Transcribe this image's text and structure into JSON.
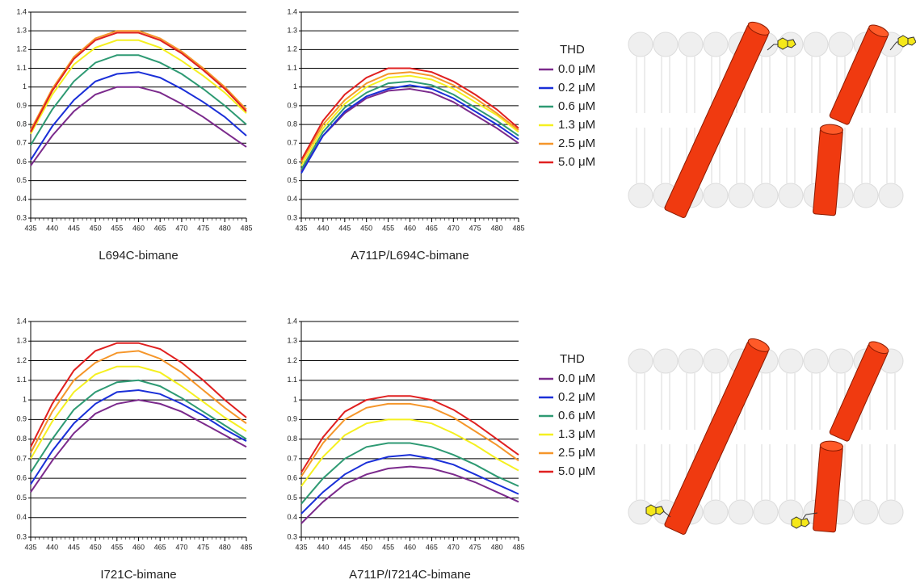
{
  "chart_data": [
    {
      "type": "line",
      "xlabel": "L694C-bimane",
      "x": [
        435,
        440,
        445,
        450,
        455,
        460,
        465,
        470,
        475,
        480,
        485
      ],
      "xlim": [
        435,
        485
      ],
      "xticks": [
        435,
        440,
        445,
        450,
        455,
        460,
        465,
        470,
        475,
        480,
        485
      ],
      "ylim": [
        0.3,
        1.4
      ],
      "yticks": [
        0.3,
        0.4,
        0.5,
        0.6,
        0.7,
        0.8,
        0.9,
        1,
        1.1,
        1.2,
        1.3,
        1.4
      ],
      "grid": true,
      "series": [
        {
          "color": "#7b2a8c",
          "values": [
            0.58,
            0.74,
            0.87,
            0.96,
            1.0,
            1.0,
            0.97,
            0.91,
            0.84,
            0.76,
            0.68
          ]
        },
        {
          "color": "#1a2fd8",
          "values": [
            0.61,
            0.79,
            0.93,
            1.03,
            1.07,
            1.08,
            1.05,
            0.99,
            0.92,
            0.84,
            0.74
          ]
        },
        {
          "color": "#2e9a73",
          "values": [
            0.69,
            0.88,
            1.03,
            1.13,
            1.17,
            1.17,
            1.13,
            1.07,
            0.99,
            0.9,
            0.8
          ]
        },
        {
          "color": "#f5f020",
          "values": [
            0.75,
            0.96,
            1.12,
            1.21,
            1.25,
            1.25,
            1.21,
            1.14,
            1.06,
            0.97,
            0.86
          ]
        },
        {
          "color": "#f5962a",
          "values": [
            0.77,
            0.99,
            1.16,
            1.26,
            1.3,
            1.3,
            1.26,
            1.19,
            1.1,
            1.0,
            0.88
          ]
        },
        {
          "color": "#e02020",
          "values": [
            0.76,
            0.98,
            1.15,
            1.25,
            1.29,
            1.29,
            1.25,
            1.18,
            1.09,
            0.99,
            0.87
          ]
        }
      ]
    },
    {
      "type": "line",
      "xlabel": "A711P/L694C-bimane",
      "x": [
        435,
        440,
        445,
        450,
        455,
        460,
        465,
        470,
        475,
        480,
        485
      ],
      "xlim": [
        435,
        485
      ],
      "xticks": [
        435,
        440,
        445,
        450,
        455,
        460,
        465,
        470,
        475,
        480,
        485
      ],
      "ylim": [
        0.3,
        1.4
      ],
      "yticks": [
        0.3,
        0.4,
        0.5,
        0.6,
        0.7,
        0.8,
        0.9,
        1,
        1.1,
        1.2,
        1.3,
        1.4
      ],
      "grid": true,
      "legend_title": "THD",
      "legend": "right",
      "series": [
        {
          "name": "0.0 μM",
          "color": "#7b2a8c",
          "values": [
            0.55,
            0.74,
            0.86,
            0.94,
            0.98,
            0.99,
            0.97,
            0.92,
            0.85,
            0.78,
            0.7
          ]
        },
        {
          "name": "0.2 μM",
          "color": "#1a2fd8",
          "values": [
            0.54,
            0.74,
            0.87,
            0.95,
            0.99,
            1.01,
            0.99,
            0.94,
            0.87,
            0.8,
            0.72
          ]
        },
        {
          "name": "0.6 μM",
          "color": "#2e9a73",
          "values": [
            0.56,
            0.76,
            0.89,
            0.97,
            1.02,
            1.03,
            1.01,
            0.96,
            0.89,
            0.82,
            0.74
          ]
        },
        {
          "name": "1.3 μM",
          "color": "#f5f020",
          "values": [
            0.58,
            0.78,
            0.91,
            1.0,
            1.05,
            1.06,
            1.04,
            0.99,
            0.92,
            0.85,
            0.76
          ]
        },
        {
          "name": "2.5 μM",
          "color": "#f5962a",
          "values": [
            0.6,
            0.8,
            0.93,
            1.02,
            1.07,
            1.08,
            1.06,
            1.01,
            0.94,
            0.86,
            0.77
          ]
        },
        {
          "name": "5.0 μM",
          "color": "#e02020",
          "values": [
            0.61,
            0.82,
            0.96,
            1.05,
            1.1,
            1.1,
            1.08,
            1.03,
            0.96,
            0.88,
            0.78
          ]
        }
      ]
    },
    {
      "type": "line",
      "xlabel": "I721C-bimane",
      "x": [
        435,
        440,
        445,
        450,
        455,
        460,
        465,
        470,
        475,
        480,
        485
      ],
      "xlim": [
        435,
        485
      ],
      "xticks": [
        435,
        440,
        445,
        450,
        455,
        460,
        465,
        470,
        475,
        480,
        485
      ],
      "ylim": [
        0.3,
        1.4
      ],
      "yticks": [
        0.3,
        0.4,
        0.5,
        0.6,
        0.7,
        0.8,
        0.9,
        1,
        1.1,
        1.2,
        1.3,
        1.4
      ],
      "grid": true,
      "series": [
        {
          "color": "#7b2a8c",
          "values": [
            0.53,
            0.69,
            0.83,
            0.93,
            0.98,
            1.0,
            0.98,
            0.94,
            0.88,
            0.82,
            0.76
          ]
        },
        {
          "color": "#1a2fd8",
          "values": [
            0.57,
            0.74,
            0.88,
            0.98,
            1.04,
            1.05,
            1.03,
            0.98,
            0.92,
            0.85,
            0.79
          ]
        },
        {
          "color": "#2e9a73",
          "values": [
            0.63,
            0.8,
            0.95,
            1.04,
            1.09,
            1.1,
            1.07,
            1.01,
            0.94,
            0.87,
            0.8
          ]
        },
        {
          "color": "#f5f020",
          "values": [
            0.7,
            0.89,
            1.04,
            1.13,
            1.17,
            1.17,
            1.14,
            1.07,
            0.99,
            0.91,
            0.84
          ]
        },
        {
          "color": "#f5962a",
          "values": [
            0.73,
            0.94,
            1.1,
            1.19,
            1.24,
            1.25,
            1.21,
            1.14,
            1.05,
            0.96,
            0.88
          ]
        },
        {
          "color": "#e02020",
          "values": [
            0.76,
            0.98,
            1.15,
            1.25,
            1.29,
            1.29,
            1.26,
            1.19,
            1.1,
            1.0,
            0.91
          ]
        }
      ]
    },
    {
      "type": "line",
      "xlabel": "A711P/I7214C-bimane",
      "x": [
        435,
        440,
        445,
        450,
        455,
        460,
        465,
        470,
        475,
        480,
        485
      ],
      "xlim": [
        435,
        485
      ],
      "xticks": [
        435,
        440,
        445,
        450,
        455,
        460,
        465,
        470,
        475,
        480,
        485
      ],
      "ylim": [
        0.3,
        1.4
      ],
      "yticks": [
        0.3,
        0.4,
        0.5,
        0.6,
        0.7,
        0.8,
        0.9,
        1,
        1.1,
        1.2,
        1.3,
        1.4
      ],
      "grid": true,
      "legend_title": "THD",
      "legend": "right",
      "series": [
        {
          "name": "0.0 μM",
          "color": "#7b2a8c",
          "values": [
            0.37,
            0.48,
            0.57,
            0.62,
            0.65,
            0.66,
            0.65,
            0.62,
            0.58,
            0.53,
            0.48
          ]
        },
        {
          "name": "0.2 μM",
          "color": "#1a2fd8",
          "values": [
            0.42,
            0.53,
            0.62,
            0.68,
            0.71,
            0.72,
            0.7,
            0.67,
            0.62,
            0.57,
            0.52
          ]
        },
        {
          "name": "0.6 μM",
          "color": "#2e9a73",
          "values": [
            0.47,
            0.6,
            0.7,
            0.76,
            0.78,
            0.78,
            0.76,
            0.72,
            0.67,
            0.61,
            0.56
          ]
        },
        {
          "name": "1.3 μM",
          "color": "#f5f020",
          "values": [
            0.56,
            0.71,
            0.82,
            0.88,
            0.9,
            0.9,
            0.88,
            0.83,
            0.77,
            0.7,
            0.64
          ]
        },
        {
          "name": "2.5 μM",
          "color": "#f5962a",
          "values": [
            0.61,
            0.78,
            0.9,
            0.96,
            0.98,
            0.98,
            0.96,
            0.91,
            0.84,
            0.77,
            0.69
          ]
        },
        {
          "name": "5.0 μM",
          "color": "#e02020",
          "values": [
            0.63,
            0.81,
            0.94,
            1.0,
            1.02,
            1.02,
            1.0,
            0.95,
            0.88,
            0.8,
            0.72
          ]
        }
      ]
    }
  ]
}
